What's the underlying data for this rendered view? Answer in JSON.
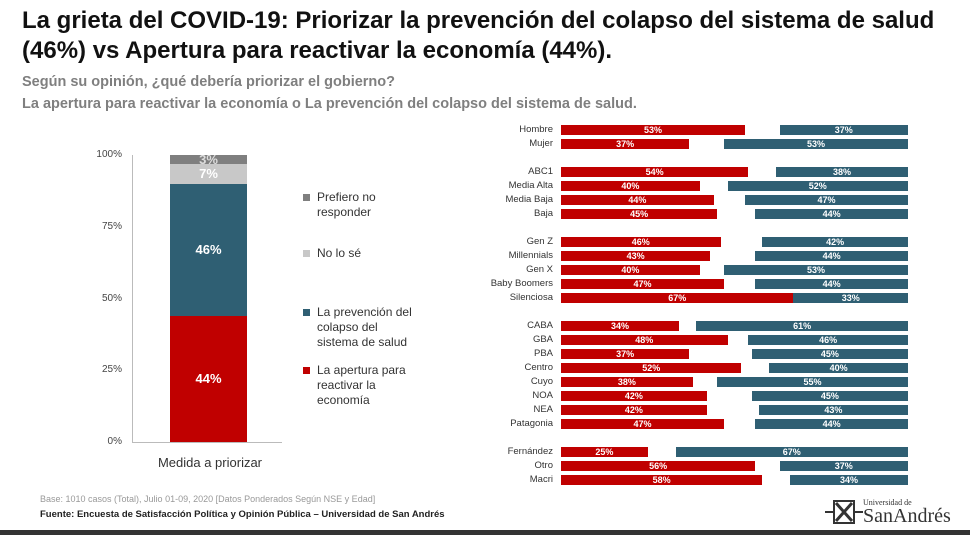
{
  "title": "La grieta del COVID-19: Priorizar la prevención del colapso del sistema de salud (46%) vs Apertura para reactivar la economía (44%).",
  "subtitle1": "Según su opinión, ¿qué debería priorizar el gobierno?",
  "subtitle2": "La apertura para reactivar la economía o La prevención del colapso del sistema de salud.",
  "colors": {
    "apertura": "#c00000",
    "prevencion": "#2f5f73",
    "nolose": "#c8c8c8",
    "prefiero": "#7f7f7f"
  },
  "chart_data": [
    {
      "type": "bar",
      "stacked": true,
      "title": "",
      "xlabel": "Medida a priorizar",
      "ylim": [
        0,
        100
      ],
      "yticks": [
        "0%",
        "25%",
        "50%",
        "75%",
        "100%"
      ],
      "categories": [
        "Medida a priorizar"
      ],
      "series": [
        {
          "name": "La apertura para reactivar la economía",
          "value": 44,
          "label": "44%",
          "color": "#c00000"
        },
        {
          "name": "La prevención del colapso del sistema de salud",
          "value": 46,
          "label": "46%",
          "color": "#2f5f73"
        },
        {
          "name": "No lo sé",
          "value": 7,
          "label": "7%",
          "color": "#c8c8c8"
        },
        {
          "name": "Prefiero no responder",
          "value": 3,
          "label": "3%",
          "color": "#7f7f7f"
        }
      ],
      "legend": [
        "Prefiero no responder",
        "No lo sé",
        "La prevención del colapso del sistema de salud",
        "La apertura para reactivar la economía"
      ]
    },
    {
      "type": "bar",
      "orientation": "horizontal",
      "series_names": [
        "Apertura",
        "Prevención"
      ],
      "groups": [
        [
          {
            "label": "Hombre",
            "a": 53,
            "p": 37
          },
          {
            "label": "Mujer",
            "a": 37,
            "p": 53
          }
        ],
        [
          {
            "label": "ABC1",
            "a": 54,
            "p": 38
          },
          {
            "label": "Media Alta",
            "a": 40,
            "p": 52
          },
          {
            "label": "Media Baja",
            "a": 44,
            "p": 47
          },
          {
            "label": "Baja",
            "a": 45,
            "p": 44
          }
        ],
        [
          {
            "label": "Gen Z",
            "a": 46,
            "p": 42
          },
          {
            "label": "Millennials",
            "a": 43,
            "p": 44
          },
          {
            "label": "Gen X",
            "a": 40,
            "p": 53
          },
          {
            "label": "Baby Boomers",
            "a": 47,
            "p": 44
          },
          {
            "label": "Silenciosa",
            "a": 67,
            "p": 33
          }
        ],
        [
          {
            "label": "CABA",
            "a": 34,
            "p": 61
          },
          {
            "label": "GBA",
            "a": 48,
            "p": 46
          },
          {
            "label": "PBA",
            "a": 37,
            "p": 45
          },
          {
            "label": "Centro",
            "a": 52,
            "p": 40
          },
          {
            "label": "Cuyo",
            "a": 38,
            "p": 55
          },
          {
            "label": "NOA",
            "a": 42,
            "p": 45
          },
          {
            "label": "NEA",
            "a": 42,
            "p": 43
          },
          {
            "label": "Patagonia",
            "a": 47,
            "p": 44
          }
        ],
        [
          {
            "label": "Fernández",
            "a": 25,
            "p": 67
          },
          {
            "label": "Otro",
            "a": 56,
            "p": 37
          },
          {
            "label": "Macri",
            "a": 58,
            "p": 34
          }
        ]
      ]
    }
  ],
  "legend_labels": {
    "prefiero": "Prefiero no responder",
    "nolose": "No lo sé",
    "prevencion": "La prevención del colapso del sistema de salud",
    "apertura": "La apertura para reactivar la economía"
  },
  "footer": {
    "base": "Base: 1010 casos (Total), Julio 01-09, 2020 [Datos Ponderados Según NSE y Edad]",
    "source": "Fuente: Encuesta de Satisfacción Política y Opinión Pública – Universidad de San Andrés"
  },
  "logo": {
    "top": "Universidad de",
    "bottom": "SanAndrés"
  }
}
